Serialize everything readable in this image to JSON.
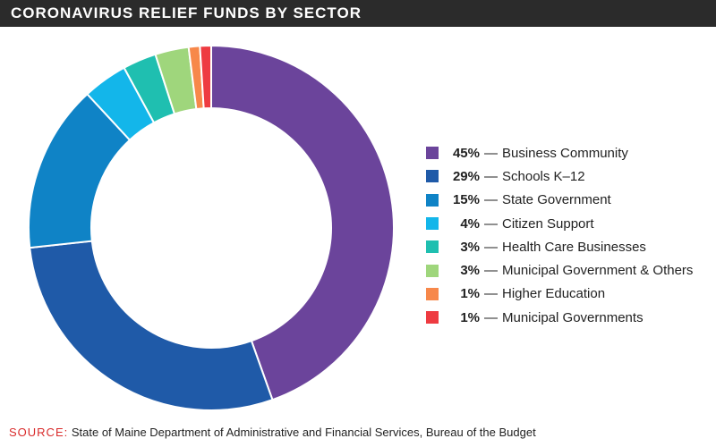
{
  "header": {
    "title": "CORONAVIRUS RELIEF FUNDS BY SECTOR"
  },
  "chart_data": {
    "type": "pie",
    "title": "CORONAVIRUS RELIEF FUNDS BY SECTOR",
    "style": "donut",
    "legend_position": "right",
    "separator": "—",
    "slices": [
      {
        "label": "Business Community",
        "value": 45,
        "value_label": "45%",
        "color": "#6b449b"
      },
      {
        "label": "Schools K–12",
        "value": 29,
        "value_label": "29%",
        "color": "#1f5aa8"
      },
      {
        "label": "State Government",
        "value": 15,
        "value_label": "15%",
        "color": "#0f83c6"
      },
      {
        "label": "Citizen Support",
        "value": 4,
        "value_label": "4%",
        "color": "#13b6ea"
      },
      {
        "label": "Health Care Businesses",
        "value": 3,
        "value_label": "3%",
        "color": "#1fbfb0"
      },
      {
        "label": "Municipal Government & Others",
        "value": 3,
        "value_label": "3%",
        "color": "#9fd67c"
      },
      {
        "label": "Higher Education",
        "value": 1,
        "value_label": "1%",
        "color": "#f7884a"
      },
      {
        "label": "Municipal Governments",
        "value": 1,
        "value_label": "1%",
        "color": "#ee3b41"
      }
    ]
  },
  "footer": {
    "source_label": "SOURCE:",
    "source_text": "State of Maine Department of Administrative and Financial Services, Bureau of the Budget"
  }
}
